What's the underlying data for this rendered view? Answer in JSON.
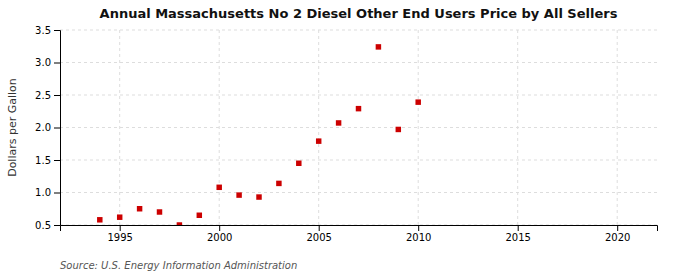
{
  "chart_data": {
    "type": "scatter",
    "title": "Annual Massachusetts No 2 Diesel Other End Users Price by All Sellers",
    "ylabel": "Dollars per Gallon",
    "source": "Source: U.S. Energy Information Administration",
    "x": [
      1994,
      1995,
      1996,
      1997,
      1998,
      1999,
      2000,
      2001,
      2002,
      2003,
      2004,
      2005,
      2006,
      2007,
      2008,
      2009,
      2010
    ],
    "values": [
      0.58,
      0.62,
      0.75,
      0.7,
      0.5,
      0.65,
      1.08,
      0.96,
      0.93,
      1.14,
      1.45,
      1.79,
      2.07,
      2.29,
      3.24,
      1.97,
      2.39
    ],
    "color": "#cc0000",
    "marker": "square",
    "xlim": [
      1992,
      2022
    ],
    "ylim": [
      0.5,
      3.5
    ],
    "xticks": [
      1995,
      2000,
      2005,
      2010,
      2015,
      2020
    ],
    "yticks": [
      0.5,
      {
        "value": 1.0,
        "label": "1.0"
      },
      1.5,
      {
        "value": 2.0,
        "label": "2.0"
      },
      2.5,
      {
        "value": 3.0,
        "label": "3.0"
      },
      3.5
    ],
    "grid": true
  }
}
